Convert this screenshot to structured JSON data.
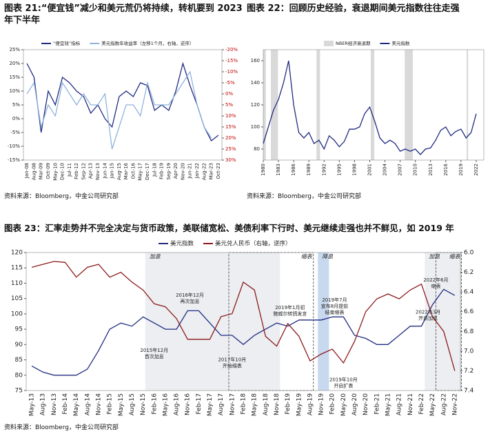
{
  "chart_data": [
    {
      "type": "line",
      "title": "图表 21:“便宜钱”减少和美元荒仍将持续，转机要到 2023 年下半年",
      "source": "资料来源：Bloomberg，中金公司研究部",
      "categories": [
        "Jan-08",
        "Aug-08",
        "Mar-09",
        "Oct-09",
        "May-10",
        "Dec-10",
        "Jul-11",
        "Feb-12",
        "Sep-12",
        "Apr-13",
        "Nov-13",
        "Jun-14",
        "Jan-15",
        "Aug-15",
        "Mar-16",
        "Oct-16",
        "May-17",
        "Dec-17",
        "Jul-18",
        "Feb-19",
        "Sep-19",
        "Apr-20",
        "Nov-20",
        "Jun-21",
        "Jan-22",
        "Aug-22",
        "Mar-23",
        "Oct-23"
      ],
      "series": [
        {
          "name": "“便宜钱”指标",
          "color": "#1f2a80",
          "values": [
            20,
            15,
            -5,
            10,
            5,
            15,
            13,
            10,
            8,
            2,
            5,
            0,
            -3,
            8,
            10,
            8,
            13,
            12,
            3,
            5,
            3,
            10,
            20,
            12,
            5,
            -3,
            -8,
            -6
          ]
        },
        {
          "name": "美元指数年收益率（左移1个月，右轴，逆序）",
          "color": "#8fb3dc",
          "axis": "y2",
          "values": [
            0,
            -5,
            15,
            5,
            10,
            -5,
            0,
            5,
            0,
            5,
            5,
            0,
            25,
            15,
            5,
            5,
            10,
            -5,
            5,
            5,
            5,
            0,
            -5,
            -10,
            5,
            15,
            20,
            null
          ]
        }
      ],
      "ylim": [
        -15,
        25
      ],
      "yticks": [
        {
          "value": 25,
          "label": "25%"
        },
        {
          "value": 20,
          "label": "20%"
        },
        {
          "value": 15,
          "label": "15%"
        },
        {
          "value": 10,
          "label": "10%"
        },
        {
          "value": 5,
          "label": "5%"
        },
        {
          "value": 0,
          "label": "0%"
        },
        {
          "value": -5,
          "label": "-5%"
        },
        {
          "value": -10,
          "label": "-10%"
        },
        {
          "value": -15,
          "label": "-15%"
        }
      ],
      "y2lim": [
        -20,
        30
      ],
      "y2_inverted": true,
      "y2ticks": [
        {
          "value": -20,
          "label": "-20%"
        },
        {
          "value": -15,
          "label": "-15%"
        },
        {
          "value": -10,
          "label": "-10%"
        },
        {
          "value": -5,
          "label": "-5%"
        },
        {
          "value": 0,
          "label": "0%"
        },
        {
          "value": 5,
          "label": "5%"
        },
        {
          "value": 10,
          "label": "10%"
        },
        {
          "value": 15,
          "label": "15%"
        },
        {
          "value": 20,
          "label": "20%"
        },
        {
          "value": 25,
          "label": "25%"
        },
        {
          "value": 30,
          "label": "30%"
        }
      ]
    },
    {
      "type": "line",
      "title": "图表 22：回顾历史经验，衰退期间美元指数往往走强",
      "source": "资料来源：Bloomberg，中金公司研究部",
      "recession_name": "NBER经济衰退期",
      "recession_color": "#d9d9d9",
      "recessions": [
        [
          1980,
          1980.5
        ],
        [
          1981.5,
          1982.9
        ],
        [
          1990.5,
          1991.2
        ],
        [
          2001.2,
          2001.9
        ],
        [
          2007.9,
          2009.5
        ],
        [
          2020.1,
          2020.4
        ]
      ],
      "x": [
        1980,
        1981,
        1982,
        1983,
        1984,
        1985,
        1986,
        1987,
        1988,
        1989,
        1990,
        1991,
        1992,
        1993,
        1994,
        1995,
        1996,
        1997,
        1998,
        1999,
        2000,
        2001,
        2002,
        2003,
        2004,
        2005,
        2006,
        2007,
        2008,
        2009,
        2010,
        2011,
        2012,
        2013,
        2014,
        2015,
        2016,
        2017,
        2018,
        2019,
        2020,
        2021,
        2022
      ],
      "series": [
        {
          "name": "美元指数",
          "color": "#1f2a80",
          "values": [
            85,
            100,
            115,
            125,
            140,
            160,
            120,
            95,
            90,
            95,
            85,
            88,
            80,
            92,
            88,
            82,
            87,
            98,
            98,
            100,
            112,
            118,
            105,
            90,
            85,
            88,
            85,
            78,
            80,
            78,
            80,
            75,
            80,
            81,
            88,
            97,
            100,
            92,
            96,
            98,
            90,
            95,
            112
          ]
        }
      ],
      "xlim": [
        1980,
        2023.5
      ],
      "xticks": [
        1980,
        1983,
        1986,
        1989,
        1992,
        1995,
        1998,
        2001,
        2004,
        2007,
        2010,
        2013,
        2016,
        2019,
        2022
      ],
      "ylim": [
        70,
        170
      ],
      "yticks": [
        80,
        100,
        120,
        140,
        160
      ]
    },
    {
      "type": "line",
      "title": "图表 23：汇率走势并不完全决定与货币政策，美联储宽松、美债利率下行时、美元继续走强也并不鲜见，如 2019 年",
      "source": "资料来源：Bloomberg，中金公司研究部",
      "categories": [
        "May-13",
        "Aug-13",
        "Nov-13",
        "Feb-14",
        "May-14",
        "Aug-14",
        "Nov-14",
        "Feb-15",
        "May-15",
        "Aug-15",
        "Nov-15",
        "Feb-16",
        "May-16",
        "Aug-16",
        "Nov-16",
        "Feb-17",
        "May-17",
        "Aug-17",
        "Nov-17",
        "Feb-18",
        "May-18",
        "Aug-18",
        "Nov-18",
        "Feb-19",
        "May-19",
        "Aug-19",
        "Nov-19",
        "Feb-20",
        "May-20",
        "Aug-20",
        "Nov-20",
        "Feb-21",
        "May-21",
        "Aug-21",
        "Nov-21",
        "Feb-22",
        "May-22",
        "Aug-22",
        "Nov-22"
      ],
      "series": [
        {
          "name": "美元指数",
          "color": "#1f2a80",
          "values": [
            83,
            81,
            80,
            80,
            80,
            82,
            88,
            95,
            97,
            96,
            99,
            97,
            95,
            95,
            101,
            101,
            97,
            93,
            93,
            90,
            93,
            95,
            97,
            96,
            98,
            98,
            98,
            99,
            99,
            93,
            92,
            90,
            90,
            93,
            96,
            96,
            103,
            108,
            106
          ]
        },
        {
          "name": "美元兑人民币（右轴，逆序）",
          "color": "#8b1a1a",
          "axis": "y2",
          "values": [
            6.15,
            6.12,
            6.09,
            6.1,
            6.25,
            6.15,
            6.12,
            6.25,
            6.2,
            6.3,
            6.38,
            6.52,
            6.55,
            6.67,
            6.88,
            6.88,
            6.88,
            6.65,
            6.62,
            6.3,
            6.38,
            6.85,
            6.95,
            6.72,
            6.85,
            7.1,
            7.03,
            6.98,
            7.12,
            6.9,
            6.6,
            6.47,
            6.42,
            6.47,
            6.38,
            6.32,
            6.65,
            6.8,
            7.2
          ]
        }
      ],
      "ylim": [
        75,
        120
      ],
      "yticks": [
        75,
        80,
        85,
        90,
        95,
        100,
        105,
        110,
        115,
        120
      ],
      "y2lim": [
        6.0,
        7.4
      ],
      "y2_inverted": true,
      "y2ticks": [
        {
          "value": 6.0,
          "label": "6.0"
        },
        6.2,
        6.4,
        6.6,
        6.8,
        {
          "value": 7.0,
          "label": "7.0"
        },
        7.2,
        7.4
      ],
      "periods": [
        "加息",
        "缩表",
        "降息",
        "加息",
        "缩表"
      ],
      "annotations": [
        [
          "2015年12月",
          "首次加息"
        ],
        [
          "2016年12月",
          "再次加息"
        ],
        [
          "2017年10月",
          "开始缩表"
        ],
        [
          "2019年1月初",
          "鲍威尔转鸽发言"
        ],
        [
          "2019年7月",
          "宣布8月提前",
          "结束缩表"
        ],
        [
          "2019年10月",
          "开启扩表"
        ],
        [
          "2022年6月",
          "缩表"
        ],
        [
          "2022年3月",
          "开启加息"
        ]
      ]
    }
  ]
}
